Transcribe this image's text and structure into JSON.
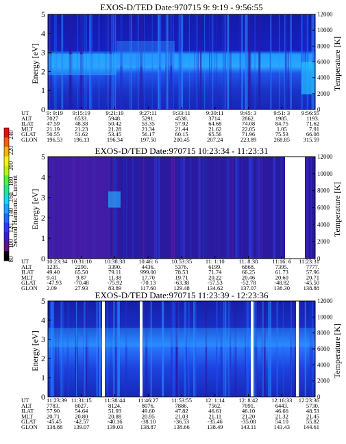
{
  "page": {
    "colorbar": {
      "title": "Second Harmonic Current",
      "ticks": [
        "240",
        "220",
        "200",
        "180",
        "160",
        "140",
        "120",
        "100",
        "80"
      ],
      "colors": [
        "#000000",
        "#6a0e86",
        "#3a1fc4",
        "#2a3cff",
        "#1c6cff",
        "#21a3ff",
        "#19d9f0",
        "#26e88a",
        "#55f040",
        "#b7f21a",
        "#f7f01a",
        "#f3b216",
        "#f15e13",
        "#e31010"
      ]
    }
  },
  "chart_data": [
    {
      "type": "heatmap",
      "title": "EXOS-D/TED   Date:970715   9: 9:19 - 9:56:55",
      "ylabel": "Energy [eV]",
      "y2label": "Temperature [K]",
      "ylim": [
        0,
        5
      ],
      "y2lim": [
        0,
        12000
      ],
      "yticks": [
        "0",
        "1",
        "2",
        "3",
        "4",
        "5"
      ],
      "y2ticks": [
        "0",
        "2000",
        "4000",
        "6000",
        "8000",
        "10000",
        "12000"
      ],
      "row_labels": [
        "UT",
        "ALT",
        "ILAT",
        "MLT",
        "GLAT",
        "GLON"
      ],
      "columns": [
        [
          "9: 9:19",
          "7027",
          "47.59",
          "21.19",
          "50.55",
          "196.53"
        ],
        [
          "9:15:19",
          "6533.",
          "48.38",
          "21.23",
          "51.62",
          "196.13"
        ],
        [
          "9:21:19",
          "5948.",
          "50.42",
          "21.28",
          "53.45",
          "196.34"
        ],
        [
          "9:27:11",
          "5291.",
          "53.35",
          "21.34",
          "56.17",
          "197.50"
        ],
        [
          "9:33:11",
          "4538.",
          "57.92",
          "21.44",
          "60.15",
          "200.45"
        ],
        [
          "9:39:11",
          "3714.",
          "64.68",
          "21.62",
          "65.56",
          "207.24"
        ],
        [
          "9:45: 3",
          "2862.",
          "74.08",
          "22.05",
          "71.96",
          "223.89"
        ],
        [
          "9:51: 3",
          "1985.",
          "84.75",
          "1.05",
          "75.53",
          "268.85"
        ],
        [
          "9:56:55",
          "1193.",
          "71.62",
          "7.91",
          "66.08",
          "315.59"
        ]
      ]
    },
    {
      "type": "heatmap",
      "title": "EXOS-D/TED   Date:970715   10:23:34 - 11:23:31",
      "ylabel": "Energy [eV]",
      "y2label": "Temperature [K]",
      "ylim": [
        0,
        5
      ],
      "y2lim": [
        0,
        12000
      ],
      "yticks": [
        "0",
        "1",
        "2",
        "3",
        "4",
        "5"
      ],
      "y2ticks": [
        "0",
        "2000",
        "4000",
        "6000",
        "8000",
        "10000",
        "12000"
      ],
      "row_labels": [
        "UT",
        "ALT",
        "ILAT",
        "MLT",
        "GLAT",
        "GLON"
      ],
      "columns": [
        [
          "10:23:34",
          "1235.",
          "49.40",
          "9.41",
          "-47.93",
          "2.09"
        ],
        [
          "10:31:10",
          "2290.",
          "65.50",
          "9.87",
          "-70.48",
          "27.93"
        ],
        [
          "10:38:38",
          "3390.",
          "79.11",
          "11.38",
          "-75.92",
          "83.89"
        ],
        [
          "10:46: 6",
          "4436.",
          "999.00",
          "17.70",
          "-70.13",
          "117.60"
        ],
        [
          "10:53:35",
          "5376.",
          "78.53",
          "19.71",
          "-63.38",
          "129.48"
        ],
        [
          "11: 1:10",
          "6199.",
          "71.74",
          "20.22",
          "-57.53",
          "134.62"
        ],
        [
          "11: 8:38",
          "6868.",
          "66.25",
          "20.46",
          "-52.78",
          "137.07"
        ],
        [
          "11:16: 6",
          "7395.",
          "61.73",
          "20.60",
          "-48.82",
          "138.30"
        ],
        [
          "11:23:31",
          "7777.",
          "57.96",
          "20.71",
          "-45.50",
          "138.88"
        ]
      ]
    },
    {
      "type": "heatmap",
      "title": "EXOS-D/TED   Date:970715   11:23:39 - 12:23:36",
      "ylabel": "Energy [eV]",
      "y2label": "Temperature [K]",
      "ylim": [
        0,
        5
      ],
      "y2lim": [
        0,
        12000
      ],
      "yticks": [
        "0",
        "1",
        "2",
        "3",
        "4",
        "5"
      ],
      "y2ticks": [
        "0",
        "2000",
        "4000",
        "6000",
        "8000",
        "10000",
        "12000"
      ],
      "row_labels": [
        "UT",
        "ALT",
        "ILAT",
        "MLT",
        "GLAT",
        "GLON"
      ],
      "columns": [
        [
          "11:23:39",
          "7783.",
          "57.90",
          "20.71",
          "-45.45",
          "138.88"
        ],
        [
          "11:31:15",
          "8027.",
          "54.64",
          "20.80",
          "-42.57",
          "139.07"
        ],
        [
          "11:38:44",
          "8124.",
          "51.93",
          "20.88",
          "-40.16",
          "139.03"
        ],
        [
          "11:46:27",
          "8076.",
          "49.60",
          "20.95",
          "-38.10",
          "138.87"
        ],
        [
          "11:53:55",
          "7886.",
          "47.82",
          "21.03",
          "-36.53",
          "138.66"
        ],
        [
          "12: 1:14",
          "7562.",
          "46.61",
          "21.11",
          "-35.46",
          "138.49"
        ],
        [
          "12: 8:42",
          "7091.",
          "46.10",
          "21.20",
          "-35.08",
          "143.11"
        ],
        [
          "12:16:33",
          "6443.",
          "46.66",
          "21.32",
          "54.10",
          "143.43"
        ],
        [
          "12:23:36",
          "5730.",
          "48.53",
          "21.45",
          "55.82",
          "144.61"
        ]
      ]
    }
  ]
}
